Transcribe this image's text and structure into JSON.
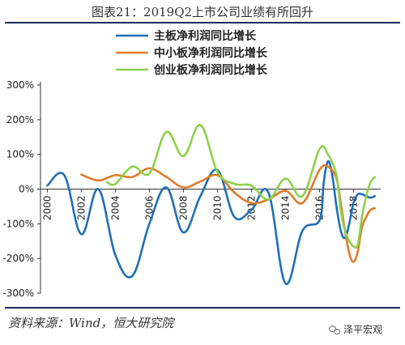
{
  "figure": {
    "title": "图表21：2019Q2上市公司业绩有所回升",
    "source": "资料来源：Wind，恒大研究院",
    "brand": "泽平宏观",
    "brand_icon": "wechat-icon"
  },
  "chart_data": {
    "type": "line",
    "title": "图表21：2019Q2上市公司业绩有所回升",
    "xlabel": "",
    "ylabel": "",
    "x_ticks": [
      2000,
      2002,
      2004,
      2006,
      2008,
      2010,
      2012,
      2014,
      2016,
      2018
    ],
    "y_ticks": [
      "-300%",
      "-200%",
      "-100%",
      "0%",
      "100%",
      "200%",
      "300%"
    ],
    "y_tick_values": [
      -300,
      -200,
      -100,
      0,
      100,
      200,
      300
    ],
    "ylim": [
      -300,
      300
    ],
    "xlim": [
      1999.6,
      2019.6
    ],
    "grid": false,
    "legend_position": "top-center",
    "series": [
      {
        "name": "主板净利润同比增长",
        "color": "#1f6fb5",
        "x": [
          2000.0,
          2001.0,
          2002.0,
          2003.0,
          2004.0,
          2005.0,
          2006.0,
          2007.0,
          2008.0,
          2009.0,
          2010.0,
          2011.0,
          2012.0,
          2013.0,
          2014.0,
          2015.0,
          2016.0,
          2016.25,
          2016.5,
          2016.75,
          2017.0,
          2017.25,
          2017.5,
          2017.75,
          2018.0,
          2018.25,
          2018.5,
          2018.75,
          2019.0,
          2019.25
        ],
        "y": [
          10,
          40,
          -130,
          0,
          -190,
          -250,
          -100,
          5,
          -125,
          -20,
          55,
          -80,
          -60,
          -10,
          -272,
          -120,
          -90,
          20,
          80,
          40,
          -50,
          -120,
          -140,
          -100,
          -40,
          -15,
          -15,
          -20,
          -25,
          -20
        ]
      },
      {
        "name": "中小板净利润同比增长",
        "color": "#e07b28",
        "x": [
          2002.0,
          2003.0,
          2004.0,
          2005.0,
          2006.0,
          2007.0,
          2008.0,
          2009.0,
          2010.0,
          2011.0,
          2012.0,
          2013.0,
          2014.0,
          2015.0,
          2016.0,
          2016.5,
          2017.0,
          2017.25,
          2017.5,
          2017.75,
          2018.0,
          2018.25,
          2018.5,
          2018.75,
          2019.0,
          2019.25
        ],
        "y": [
          42,
          25,
          40,
          35,
          60,
          35,
          5,
          22,
          40,
          -10,
          -40,
          -30,
          -5,
          -40,
          55,
          65,
          30,
          -40,
          -120,
          -185,
          -210,
          -180,
          -110,
          -80,
          -60,
          -55
        ]
      },
      {
        "name": "创业板净利润同比增长",
        "color": "#8dd04a",
        "x": [
          2003.5,
          2004.0,
          2005.0,
          2006.0,
          2007.0,
          2008.0,
          2009.0,
          2010.0,
          2011.0,
          2012.0,
          2013.0,
          2014.0,
          2015.0,
          2016.0,
          2016.5,
          2017.0,
          2017.25,
          2017.5,
          2017.75,
          2018.0,
          2018.25,
          2018.5,
          2018.75,
          2019.0,
          2019.25
        ],
        "y": [
          20,
          15,
          65,
          45,
          165,
          95,
          185,
          50,
          15,
          10,
          -30,
          30,
          -20,
          115,
          100,
          40,
          -60,
          -120,
          -150,
          -165,
          -160,
          -80,
          -20,
          20,
          35
        ]
      }
    ]
  }
}
